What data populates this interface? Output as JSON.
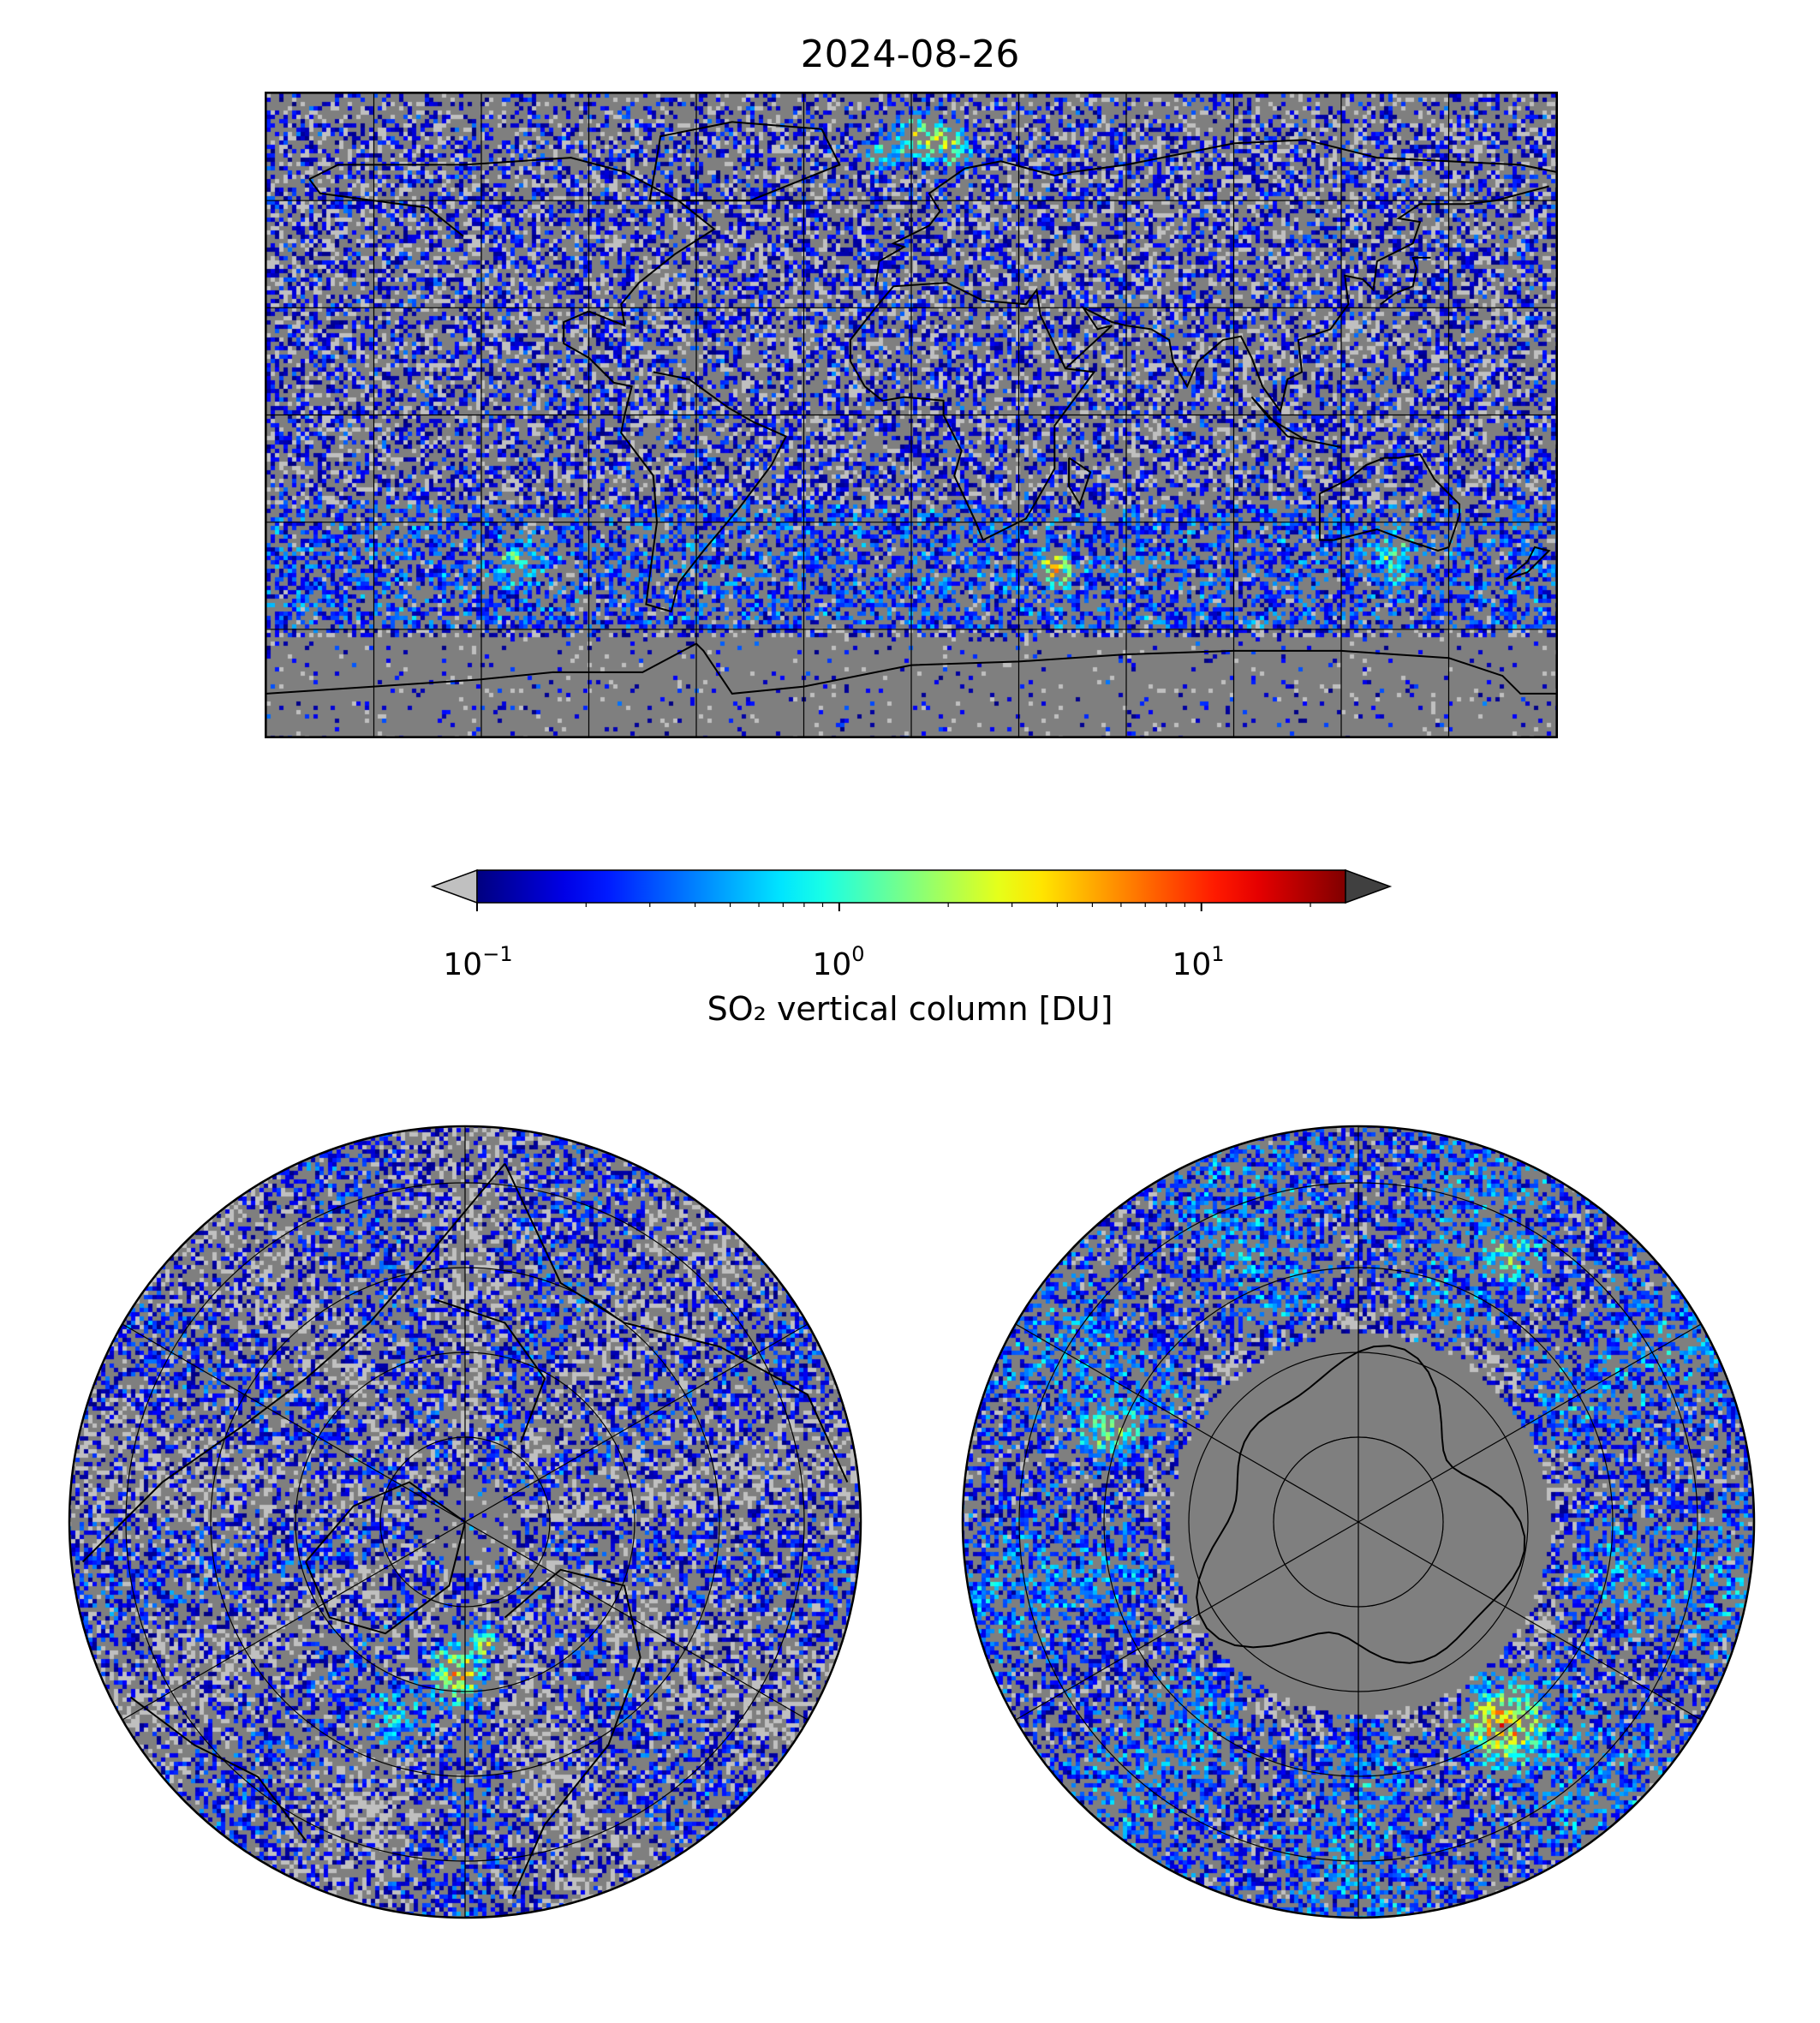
{
  "title": "2024-08-26",
  "colorbar": {
    "label": "SO₂ vertical column [DU]",
    "scale": "log",
    "range": [
      0.1,
      25
    ],
    "colormap": "jet",
    "under_color": "#c0c0c0",
    "over_color": "#404040",
    "ticks": [
      {
        "value": 0.1,
        "base": "10",
        "exp": "−1"
      },
      {
        "value": 1,
        "base": "10",
        "exp": "0"
      },
      {
        "value": 10,
        "base": "10",
        "exp": "1"
      }
    ]
  },
  "background_color": "#7f7f7f",
  "global_map": {
    "projection": "PlateCarree",
    "gridline_longitudes": [
      -180,
      -150,
      -120,
      -90,
      -60,
      -30,
      0,
      30,
      60,
      90,
      120,
      150,
      180
    ],
    "gridline_latitudes": [
      -90,
      -60,
      -30,
      0,
      30,
      60,
      90
    ],
    "features": [
      "Arctic plume north of Scandinavia (~2–5 DU)",
      "hotspot south Atlantic/Indian ocean near 40°S 40°E (~10 DU)"
    ]
  },
  "north_polar_map": {
    "projection": "NorthPolarStereo",
    "boundary_latitude": 20,
    "gridline_latitudes": [
      30,
      45,
      60,
      75
    ]
  },
  "south_polar_map": {
    "projection": "SouthPolarStereo",
    "boundary_latitude": -20,
    "gridline_latitudes": [
      -30,
      -45,
      -60,
      -75
    ]
  }
}
